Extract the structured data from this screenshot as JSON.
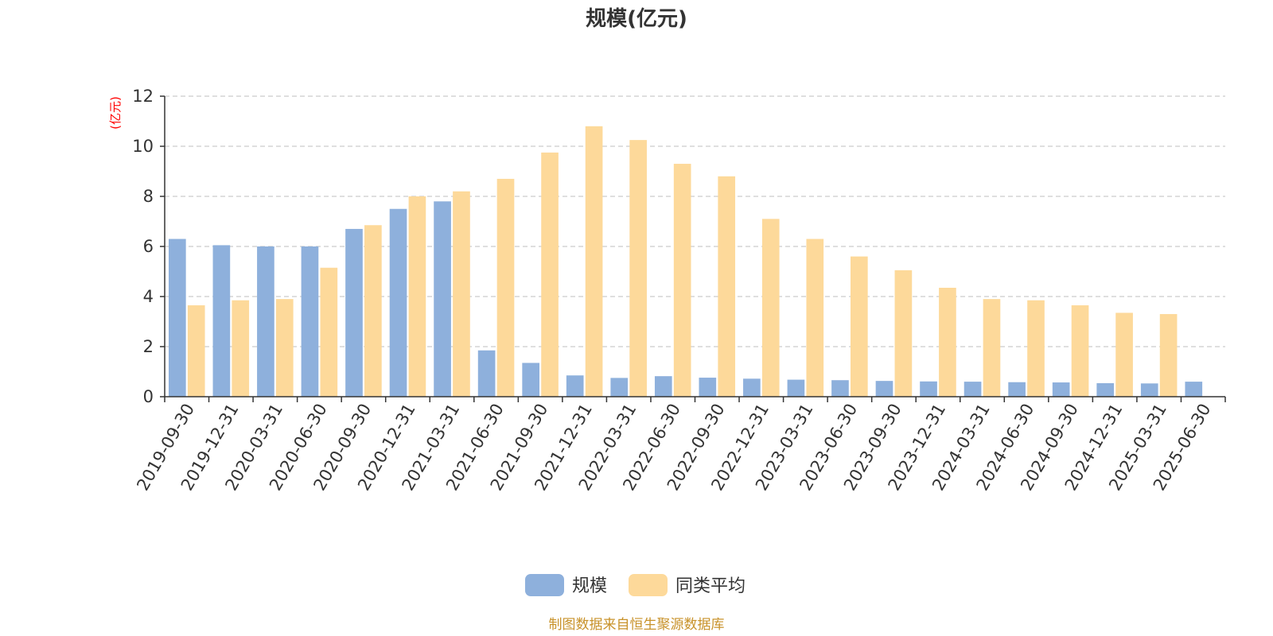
{
  "chart_data": {
    "type": "bar",
    "title": "规模(亿元)",
    "ylabel": "(亿元)",
    "xlabel": "",
    "ylim": [
      0,
      12
    ],
    "yticks": [
      0,
      2,
      4,
      6,
      8,
      10,
      12
    ],
    "grid": true,
    "legend_position": "bottom-center",
    "categories": [
      "2019-09-30",
      "2019-12-31",
      "2020-03-31",
      "2020-06-30",
      "2020-09-30",
      "2020-12-31",
      "2021-03-31",
      "2021-06-30",
      "2021-09-30",
      "2021-12-31",
      "2022-03-31",
      "2022-06-30",
      "2022-09-30",
      "2022-12-31",
      "2023-03-31",
      "2023-06-30",
      "2023-09-30",
      "2023-12-31",
      "2024-03-31",
      "2024-06-30",
      "2024-09-30",
      "2024-12-31",
      "2025-03-31",
      "2025-06-30"
    ],
    "series": [
      {
        "name": "规模",
        "color": "#8eb0dc",
        "values": [
          6.3,
          6.05,
          6.0,
          6.0,
          6.7,
          7.5,
          7.8,
          1.85,
          1.35,
          0.85,
          0.75,
          0.82,
          0.76,
          0.72,
          0.68,
          0.66,
          0.63,
          0.61,
          0.6,
          0.58,
          0.57,
          0.54,
          0.53,
          0.6
        ]
      },
      {
        "name": "同类平均",
        "color": "#fdd99a",
        "values": [
          3.65,
          3.85,
          3.9,
          5.15,
          6.85,
          8.0,
          8.2,
          8.7,
          9.75,
          10.8,
          10.25,
          9.3,
          8.8,
          7.1,
          6.3,
          5.6,
          5.05,
          4.35,
          3.9,
          3.85,
          3.65,
          3.35,
          3.3,
          null
        ]
      }
    ]
  },
  "source_text": "制图数据来自恒生聚源数据库",
  "source_color": "#c8922a",
  "axis_color": "#333333",
  "grid_color": "#cccccc"
}
